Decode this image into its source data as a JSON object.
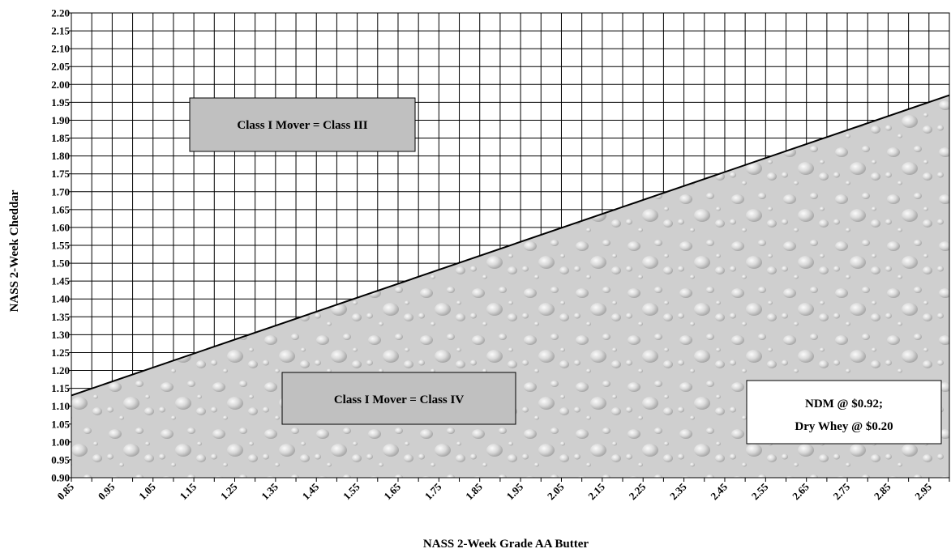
{
  "chart_data": {
    "type": "area",
    "title": "",
    "xlabel": "NASS 2-Week Grade AA Butter",
    "ylabel": "NASS 2-Week Cheddar",
    "xlim": [
      0.85,
      3.0
    ],
    "ylim": [
      0.9,
      2.2
    ],
    "grid": true,
    "x_ticks": [
      "0.85",
      "0.95",
      "1.05",
      "1.15",
      "1.25",
      "1.35",
      "1.45",
      "1.55",
      "1.65",
      "1.75",
      "1.85",
      "1.95",
      "2.05",
      "2.15",
      "2.25",
      "2.35",
      "2.45",
      "2.55",
      "2.65",
      "2.75",
      "2.85",
      "2.95"
    ],
    "y_ticks": [
      "0.90",
      "0.95",
      "1.00",
      "1.05",
      "1.10",
      "1.15",
      "1.20",
      "1.25",
      "1.30",
      "1.35",
      "1.40",
      "1.45",
      "1.50",
      "1.55",
      "1.60",
      "1.65",
      "1.70",
      "1.75",
      "1.80",
      "1.85",
      "1.90",
      "1.95",
      "2.00",
      "2.05",
      "2.10",
      "2.15",
      "2.20"
    ],
    "series": [
      {
        "x": [
          0.85,
          3.0
        ],
        "y": [
          1.13,
          1.97
        ]
      }
    ],
    "annotations": [
      {
        "text": "Class I Mover = Class III",
        "region": "upper-left"
      },
      {
        "text": "Class I Mover = Class IV",
        "region": "lower-center"
      },
      {
        "lines": [
          "NDM @ $0.92;",
          "Dry Whey @ $0.20"
        ],
        "region": "lower-right"
      }
    ]
  }
}
